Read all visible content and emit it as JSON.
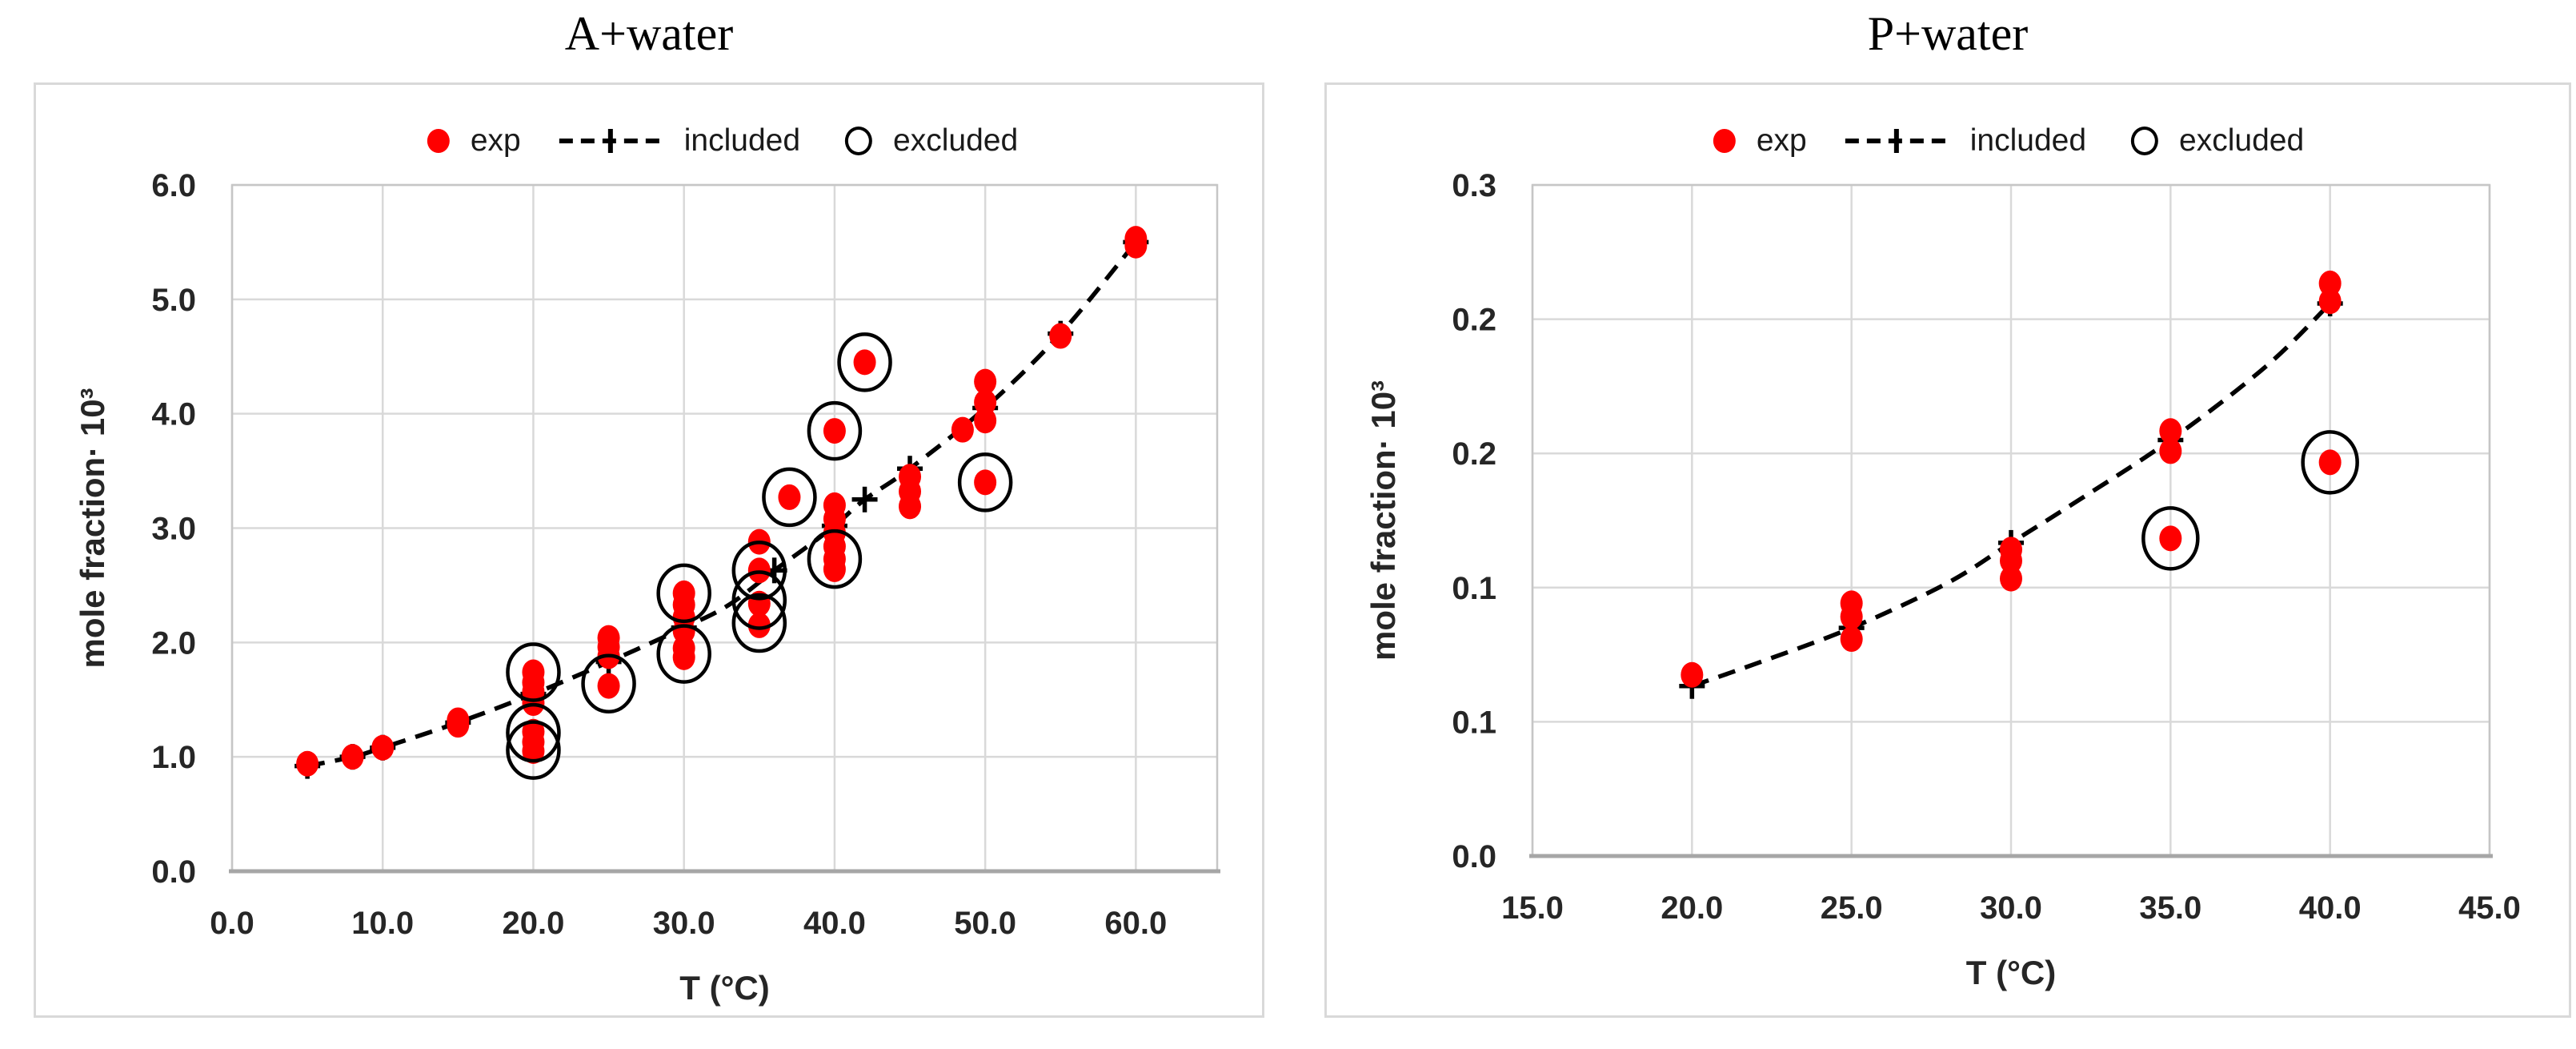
{
  "figure": {
    "background": "#ffffff",
    "grid_color": "#d9d9d9",
    "plot_border_color": "#c6c6c6",
    "axis_line_color": "#a6a6a6",
    "tick_label_color": "#262626",
    "exp_color": "#ff0000",
    "line_color": "#000000"
  },
  "chart_data": [
    {
      "type": "scatter",
      "title": "A+water",
      "xlabel": "T (°C)",
      "ylabel": "mole fraction· 10³",
      "xlim": [
        0,
        65.4
      ],
      "ylim": [
        0,
        6
      ],
      "grid": true,
      "legend_position": "top-center",
      "legend_labels": [
        "exp",
        "included",
        "excluded"
      ],
      "x_ticks": {
        "values": [
          0,
          10,
          20,
          30,
          40,
          50,
          60
        ],
        "labels": [
          "0.0",
          "10.0",
          "20.0",
          "30.0",
          "40.0",
          "50.0",
          "60.0"
        ]
      },
      "y_ticks": {
        "values": [
          0,
          1,
          2,
          3,
          4,
          5,
          6
        ],
        "labels": [
          "0.0",
          "1.0",
          "2.0",
          "3.0",
          "4.0",
          "5.0",
          "6.0"
        ]
      },
      "series": {
        "exp": {
          "marker": "dot",
          "color": "#ff0000",
          "points": [
            [
              5,
              0.94
            ],
            [
              8,
              1.0
            ],
            [
              10,
              1.08
            ],
            [
              15,
              1.28
            ],
            [
              15,
              1.32
            ],
            [
              20,
              1.74
            ],
            [
              20,
              1.65
            ],
            [
              20,
              1.57
            ],
            [
              20,
              1.47
            ],
            [
              20,
              1.22
            ],
            [
              20,
              1.13
            ],
            [
              20,
              1.05
            ],
            [
              25,
              2.04
            ],
            [
              25,
              1.96
            ],
            [
              25,
              1.88
            ],
            [
              25,
              1.62
            ],
            [
              30,
              2.43
            ],
            [
              30,
              2.33
            ],
            [
              30,
              2.22
            ],
            [
              30,
              2.1
            ],
            [
              30,
              1.95
            ],
            [
              30,
              1.87
            ],
            [
              35,
              2.88
            ],
            [
              35,
              2.63
            ],
            [
              35,
              2.34
            ],
            [
              35,
              2.15
            ],
            [
              37,
              3.27
            ],
            [
              40,
              3.85
            ],
            [
              40,
              3.2
            ],
            [
              40,
              3.08
            ],
            [
              40,
              2.96
            ],
            [
              40,
              2.84
            ],
            [
              40,
              2.73
            ],
            [
              40,
              2.64
            ],
            [
              42,
              4.45
            ],
            [
              45,
              3.45
            ],
            [
              45,
              3.32
            ],
            [
              45,
              3.19
            ],
            [
              48.5,
              3.86
            ],
            [
              50,
              4.28
            ],
            [
              50,
              4.1
            ],
            [
              50,
              3.94
            ],
            [
              50,
              3.4
            ],
            [
              55,
              4.68
            ],
            [
              60,
              5.47
            ],
            [
              60,
              5.53
            ]
          ]
        },
        "included": {
          "marker": "plus",
          "linestyle": "dashed",
          "color": "#000000",
          "curve": [
            [
              5,
              0.92
            ],
            [
              8,
              1.0
            ],
            [
              10,
              1.08
            ],
            [
              15,
              1.3
            ],
            [
              20,
              1.55
            ],
            [
              25,
              1.83
            ],
            [
              30,
              2.13
            ],
            [
              33,
              2.33
            ],
            [
              36,
              2.63
            ],
            [
              38,
              2.82
            ],
            [
              40,
              3.02
            ],
            [
              42,
              3.25
            ],
            [
              45,
              3.52
            ],
            [
              50,
              4.05
            ],
            [
              55,
              4.7
            ],
            [
              60,
              5.5
            ]
          ],
          "markers": [
            [
              5,
              0.92
            ],
            [
              8,
              1.0
            ],
            [
              10,
              1.08
            ],
            [
              15,
              1.3
            ],
            [
              20,
              1.55
            ],
            [
              25,
              1.83
            ],
            [
              30,
              2.13
            ],
            [
              36,
              2.63
            ],
            [
              40,
              3.02
            ],
            [
              42,
              3.25
            ],
            [
              45,
              3.52
            ],
            [
              50,
              4.05
            ],
            [
              55,
              4.7
            ],
            [
              60,
              5.5
            ]
          ]
        },
        "excluded": {
          "marker": "open-circle",
          "color": "#000000",
          "points": [
            [
              20,
              1.74
            ],
            [
              20,
              1.21
            ],
            [
              20,
              1.06
            ],
            [
              25,
              1.64
            ],
            [
              30,
              2.43
            ],
            [
              30,
              1.9
            ],
            [
              35,
              2.63
            ],
            [
              35,
              2.37
            ],
            [
              35,
              2.17
            ],
            [
              37,
              3.27
            ],
            [
              40,
              3.85
            ],
            [
              40,
              2.73
            ],
            [
              42,
              4.45
            ],
            [
              50,
              3.4
            ]
          ]
        }
      }
    },
    {
      "type": "scatter",
      "title": "P+water",
      "xlabel": "T (°C)",
      "ylabel": "mole fraction· 10³",
      "xlim": [
        15,
        45
      ],
      "ylim": [
        0,
        0.3
      ],
      "grid": true,
      "legend_position": "top-center",
      "legend_labels": [
        "exp",
        "included",
        "excluded"
      ],
      "x_ticks": {
        "values": [
          15,
          20,
          25,
          30,
          35,
          40,
          45
        ],
        "labels": [
          "15.0",
          "20.0",
          "25.0",
          "30.0",
          "35.0",
          "40.0",
          "45.0"
        ]
      },
      "y_ticks": {
        "values": [
          0.3,
          0.24,
          0.18,
          0.12,
          0.06,
          0
        ],
        "labels": [
          "0.3",
          "0.2",
          "0.2",
          "0.1",
          "0.1",
          "0.0"
        ]
      },
      "series": {
        "exp": {
          "marker": "dot",
          "color": "#ff0000",
          "points": [
            [
              20,
              0.081
            ],
            [
              25,
              0.113
            ],
            [
              25,
              0.107
            ],
            [
              25,
              0.097
            ],
            [
              30,
              0.137
            ],
            [
              30,
              0.132
            ],
            [
              30,
              0.124
            ],
            [
              35,
              0.19
            ],
            [
              35,
              0.181
            ],
            [
              35,
              0.142
            ],
            [
              40,
              0.256
            ],
            [
              40,
              0.248
            ],
            [
              40,
              0.176
            ]
          ]
        },
        "included": {
          "marker": "plus",
          "linestyle": "dashed",
          "color": "#000000",
          "curve": [
            [
              20,
              0.076
            ],
            [
              22,
              0.086
            ],
            [
              25,
              0.102
            ],
            [
              28,
              0.122
            ],
            [
              30,
              0.14
            ],
            [
              32,
              0.158
            ],
            [
              35,
              0.186
            ],
            [
              38,
              0.219
            ],
            [
              40,
              0.247
            ]
          ],
          "markers": [
            [
              20,
              0.076
            ],
            [
              25,
              0.102
            ],
            [
              30,
              0.14
            ],
            [
              35,
              0.186
            ],
            [
              40,
              0.247
            ]
          ]
        },
        "excluded": {
          "marker": "open-circle",
          "color": "#000000",
          "points": [
            [
              35,
              0.142
            ],
            [
              40,
              0.176
            ]
          ]
        }
      }
    }
  ]
}
